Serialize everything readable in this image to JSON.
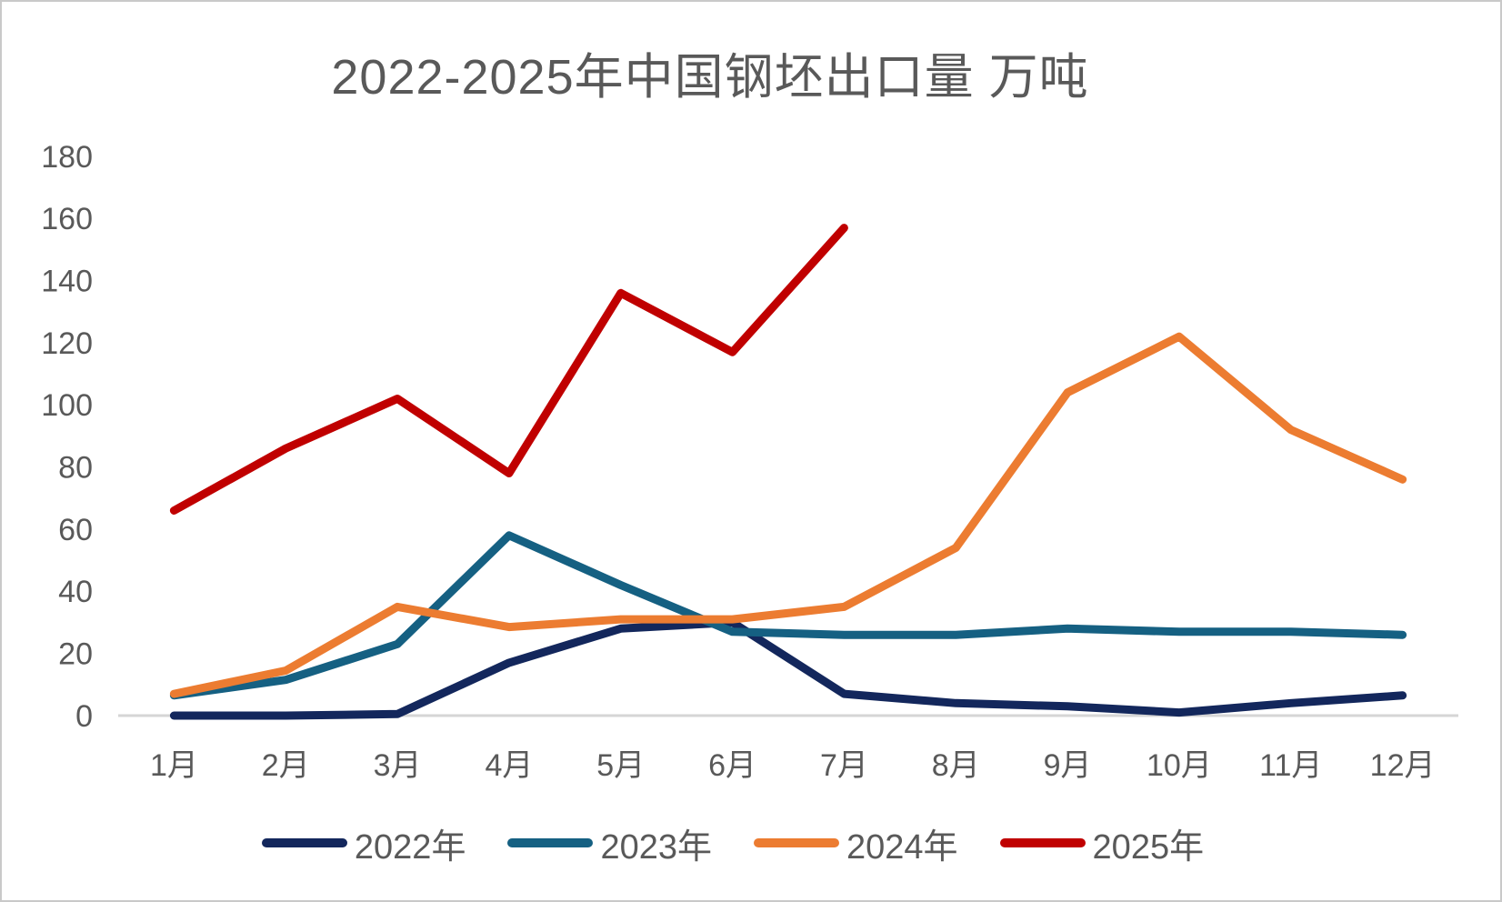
{
  "title": "2022-2025年中国钢坯出口量 万吨",
  "colors": {
    "text_gray": "#595959",
    "axis_line": "#d6d6d6",
    "frame_border": "#c9c9c9",
    "series_2022": "#13275c",
    "series_2023": "#156082",
    "series_2024": "#ec7c31",
    "series_2025": "#c00000"
  },
  "chart_data": {
    "type": "line",
    "title": "2022-2025年中国钢坯出口量 万吨",
    "xlabel": "",
    "ylabel": "",
    "unit": "万吨",
    "categories": [
      "1月",
      "2月",
      "3月",
      "4月",
      "5月",
      "6月",
      "7月",
      "8月",
      "9月",
      "10月",
      "11月",
      "12月"
    ],
    "series": [
      {
        "name": "2022年",
        "color": "#13275c",
        "values": [
          0,
          0,
          0.5,
          17,
          28,
          30,
          7,
          4,
          3,
          1,
          4,
          6.5
        ]
      },
      {
        "name": "2023年",
        "color": "#156082",
        "values": [
          6.5,
          11.5,
          23,
          58,
          42,
          27,
          26,
          26,
          28,
          27,
          27,
          26
        ]
      },
      {
        "name": "2024年",
        "color": "#ec7c31",
        "values": [
          7,
          14.5,
          35,
          28.5,
          31,
          31,
          35,
          54,
          104,
          122,
          92,
          76
        ]
      },
      {
        "name": "2025年",
        "color": "#c00000",
        "values": [
          66,
          86,
          102,
          78,
          136,
          117,
          157
        ]
      }
    ],
    "ylim": [
      0,
      180
    ],
    "ytick_step": 20,
    "grid": false,
    "legend_position": "bottom",
    "axis_color": "#d6d6d6",
    "text_color": "#595959"
  }
}
